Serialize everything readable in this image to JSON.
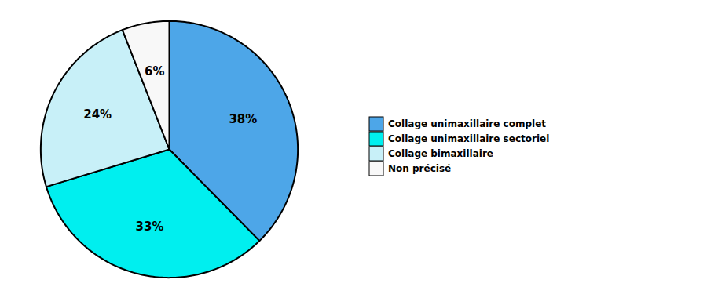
{
  "chart_data": {
    "type": "pie",
    "categories": [
      "Collage unimaxillaire complet",
      "Collage unimaxillaire sectoriel",
      "Collage bimaxillaire",
      "Non précisé"
    ],
    "values": [
      38,
      33,
      24,
      6
    ],
    "value_labels": [
      "38%",
      "33%",
      "24%",
      "6%"
    ],
    "colors": [
      "#4DA6E8",
      "#00EFEF",
      "#C8F0F8",
      "#F8F8F8"
    ],
    "data_labels": true,
    "legend": "right"
  }
}
